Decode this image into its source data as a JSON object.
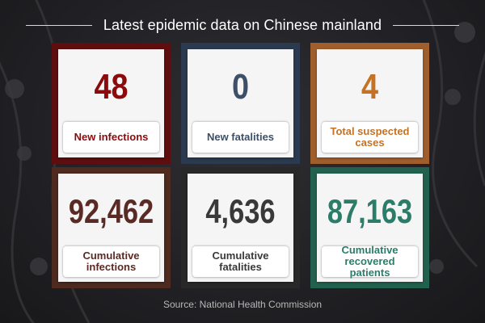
{
  "title": "Latest epidemic data on Chinese mainland",
  "cards": [
    {
      "value": "48",
      "label": "New infections",
      "frame_color": "#5e0e0e",
      "accent_color": "#8c0a0c"
    },
    {
      "value": "0",
      "label": "New fatalities",
      "frame_color": "#2c3a50",
      "accent_color": "#3e4f69"
    },
    {
      "value": "4",
      "label": "Total suspected cases",
      "frame_color": "#a05e2c",
      "accent_color": "#c47224"
    },
    {
      "value": "92,462",
      "label": "Cumulative infections",
      "frame_color": "#4e2a1f",
      "accent_color": "#5a2b24"
    },
    {
      "value": "4,636",
      "label": "Cumulative fatalities",
      "frame_color": "#282828",
      "accent_color": "#393939"
    },
    {
      "value": "87,163",
      "label": "Cumulative recovered patients",
      "frame_color": "#22614e",
      "accent_color": "#2b7d6a"
    }
  ],
  "source": "Source: National Health Commission",
  "colors": {
    "background": "#232327",
    "title_text": "#ffffff",
    "source_text": "#b8b8b8"
  }
}
